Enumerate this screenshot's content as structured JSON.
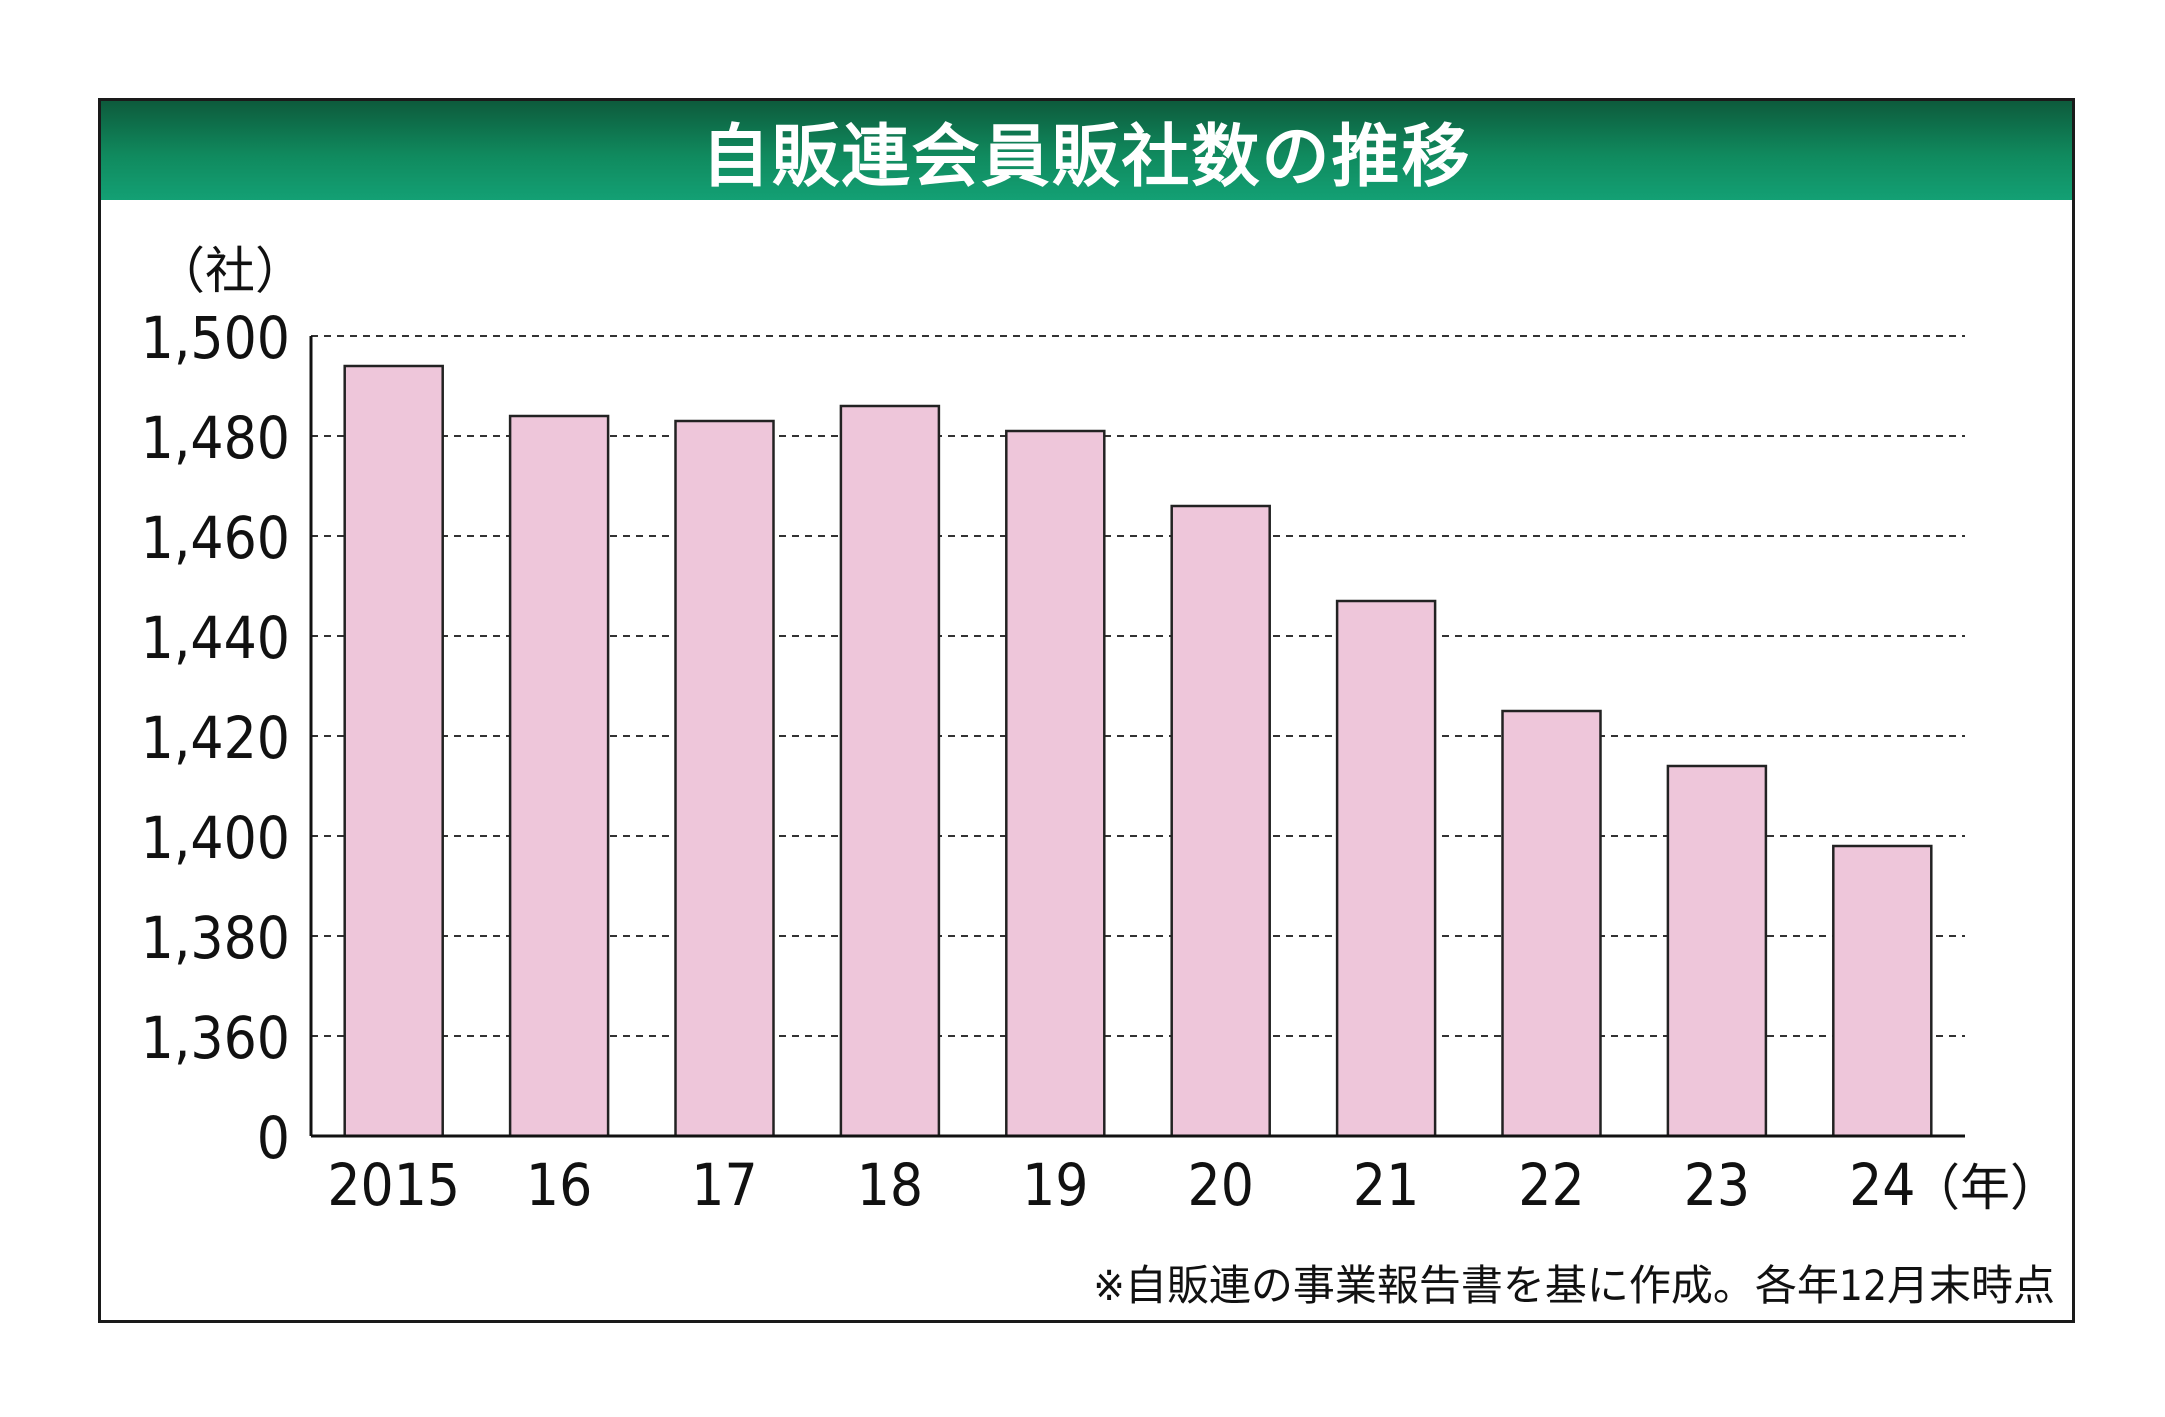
{
  "chart_data": {
    "type": "bar",
    "title": "自販連会員販社数の推移",
    "ylabel": "（社）",
    "xlabel": "",
    "x_unit": "（年）",
    "categories": [
      "2015",
      "16",
      "17",
      "18",
      "19",
      "20",
      "21",
      "22",
      "23",
      "24"
    ],
    "values": [
      1494,
      1484,
      1483,
      1486,
      1481,
      1466,
      1447,
      1425,
      1414,
      1398
    ],
    "y_ticks": [
      "0",
      "1,360",
      "1,380",
      "1,400",
      "1,420",
      "1,440",
      "1,460",
      "1,480",
      "1,500"
    ],
    "y_tick_values": [
      1340,
      1360,
      1380,
      1400,
      1420,
      1440,
      1460,
      1480,
      1500
    ],
    "ylim": [
      1340,
      1500
    ],
    "axis_break": "axis starts at 0, break between 0 and 1,360",
    "grid": "dashed horizontal",
    "note": "※自販連の事業報告書を基に作成。各年12月末時点",
    "colors": {
      "bar_fill": "#eec6da",
      "bar_stroke": "#222222",
      "title_bar": "#0f8a5c",
      "title_text": "#ffffff"
    }
  }
}
